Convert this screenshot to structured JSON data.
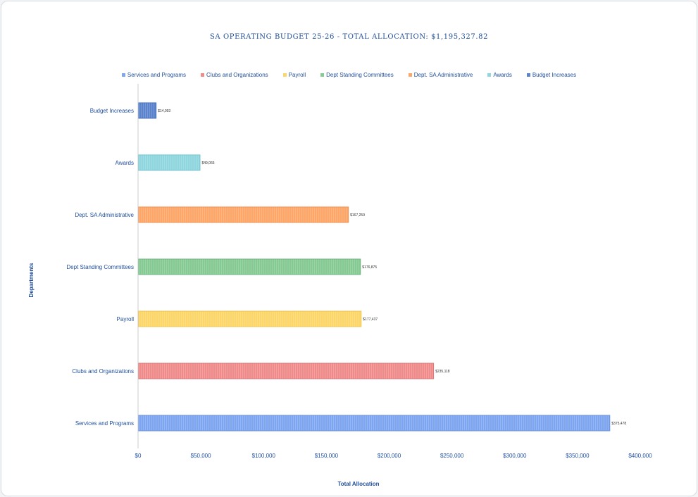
{
  "chart_data": {
    "type": "bar",
    "orientation": "horizontal",
    "title": "SA OPERATING BUDGET 25-26 - TOTAL ALLOCATION: $1,195,327.82",
    "xlabel": "Total Allocation",
    "ylabel": "Departments",
    "xlim": [
      0,
      400000
    ],
    "x_ticks": [
      "$0",
      "$50,000",
      "$100,000",
      "$150,000",
      "$200,000",
      "$250,000",
      "$300,000",
      "$350,000",
      "$400,000"
    ],
    "legend_position": "top",
    "grid": false,
    "categories": [
      "Services and Programs",
      "Clubs and Organizations",
      "Payroll",
      "Dept Standing Committees",
      "Dept. SA Administrative",
      "Awards",
      "Budget Increases"
    ],
    "values": [
      375478,
      235118,
      177437,
      176875,
      167259,
      49066,
      14093
    ],
    "value_labels": [
      "$375,478",
      "$235,118",
      "$177,437",
      "$176,875",
      "$167,259",
      "$49,066",
      "$14,093"
    ],
    "colors": [
      "#7ea6f0",
      "#ef8b8b",
      "#fcd668",
      "#85c993",
      "#fea668",
      "#8fd6de",
      "#5b84cc"
    ],
    "border_colors": [
      "#6a93e0",
      "#e27373",
      "#f2c64b",
      "#6db57c",
      "#f58f4c",
      "#73c6cf",
      "#4670bd"
    ]
  }
}
